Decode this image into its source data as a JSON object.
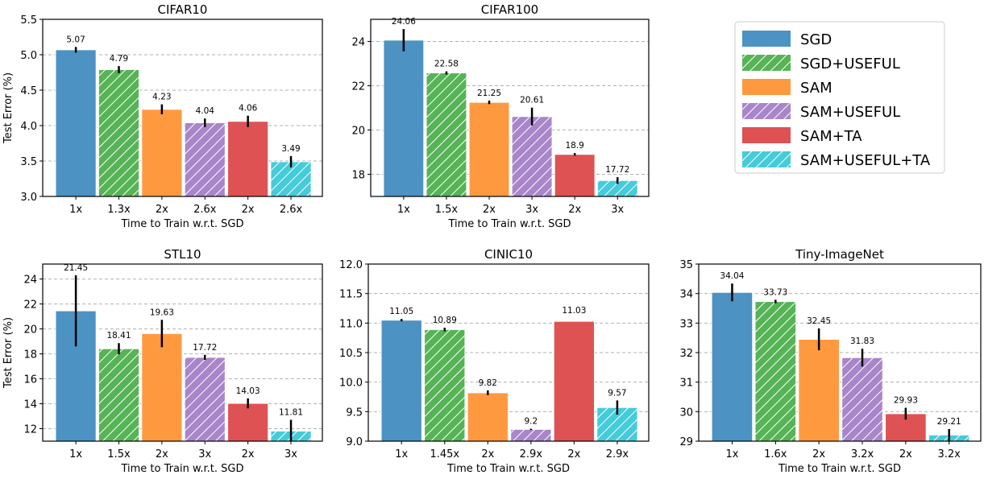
{
  "legend": {
    "placement": "top-right",
    "entries": [
      {
        "name": "SGD",
        "color": "#4c92c3",
        "hatch": false
      },
      {
        "name": "SGD+USEFUL",
        "color": "#56b356",
        "hatch": true
      },
      {
        "name": "SAM",
        "color": "#ff9940",
        "hatch": false
      },
      {
        "name": "SAM+USEFUL",
        "color": "#a985ca",
        "hatch": true
      },
      {
        "name": "SAM+TA",
        "color": "#de5253",
        "hatch": false
      },
      {
        "name": "SAM+USEFUL+TA",
        "color": "#45cbd9",
        "hatch": true
      }
    ]
  },
  "chart_data": [
    {
      "type": "bar",
      "title": "CIFAR10",
      "xlabel": "Time to Train w.r.t. SGD",
      "ylabel": "Test Error (%)",
      "categories": [
        "1x",
        "1.3x",
        "2x",
        "2.6x",
        "2x",
        "2.6x"
      ],
      "values": [
        5.07,
        4.79,
        4.23,
        4.04,
        4.06,
        3.49
      ],
      "errors": [
        0.04,
        0.05,
        0.07,
        0.06,
        0.08,
        0.08
      ],
      "ylim": [
        3.0,
        5.5
      ],
      "yticks": [
        "3.0",
        "3.5",
        "4.0",
        "4.5",
        "5.0",
        "5.5"
      ],
      "grid": true
    },
    {
      "type": "bar",
      "title": "CIFAR100",
      "xlabel": "Time to Train w.r.t. SGD",
      "ylabel": "",
      "categories": [
        "1x",
        "1.5x",
        "2x",
        "3x",
        "2x",
        "3x"
      ],
      "values": [
        24.06,
        22.58,
        21.25,
        20.61,
        18.9,
        17.72
      ],
      "errors": [
        0.5,
        0.07,
        0.08,
        0.4,
        0.06,
        0.15
      ],
      "ylim": [
        17,
        25
      ],
      "yticks": [
        "18",
        "20",
        "22",
        "24"
      ],
      "grid": true
    },
    {
      "type": "bar",
      "title": "STL10",
      "xlabel": "Time to Train w.r.t. SGD",
      "ylabel": "Test Error (%)",
      "categories": [
        "1x",
        "1.5x",
        "2x",
        "3x",
        "2x",
        "3x"
      ],
      "values": [
        21.45,
        18.41,
        19.63,
        17.72,
        14.03,
        11.81
      ],
      "errors": [
        2.85,
        0.45,
        1.1,
        0.2,
        0.4,
        0.9
      ],
      "ylim": [
        11,
        25.2
      ],
      "yticks": [
        "12",
        "14",
        "16",
        "18",
        "20",
        "22",
        "24"
      ],
      "grid": true
    },
    {
      "type": "bar",
      "title": "CINIC10",
      "xlabel": "Time to Train w.r.t. SGD",
      "ylabel": "",
      "categories": [
        "1x",
        "1.45x",
        "2x",
        "2.9x",
        "2x",
        "2.9x"
      ],
      "values": [
        11.05,
        10.89,
        9.82,
        9.2,
        11.03,
        9.57
      ],
      "errors": [
        0.02,
        0.03,
        0.04,
        0.01,
        0.0,
        0.12
      ],
      "ylim": [
        9.0,
        12.0
      ],
      "yticks": [
        "9.0",
        "9.5",
        "10.0",
        "10.5",
        "11.0",
        "11.5",
        "12.0"
      ],
      "grid": true
    },
    {
      "type": "bar",
      "title": "Tiny-ImageNet",
      "xlabel": "Time to Train w.r.t. SGD",
      "ylabel": "",
      "categories": [
        "1x",
        "1.6x",
        "2x",
        "3.2x",
        "2x",
        "3.2x"
      ],
      "values": [
        34.04,
        33.73,
        32.45,
        31.83,
        29.93,
        29.21
      ],
      "errors": [
        0.3,
        0.06,
        0.37,
        0.3,
        0.2,
        0.2
      ],
      "ylim": [
        29,
        35
      ],
      "yticks": [
        "29",
        "30",
        "31",
        "32",
        "33",
        "34",
        "35"
      ],
      "grid": true
    }
  ]
}
